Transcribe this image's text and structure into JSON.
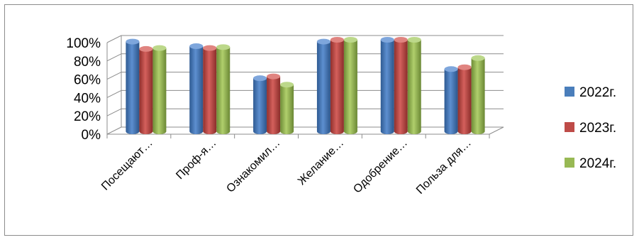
{
  "chart_data": {
    "type": "bar",
    "categories": [
      "Посещают…",
      "Проф-я…",
      "Ознакомил…",
      "Желание…",
      "Одобрение…",
      "Польза для…"
    ],
    "series": [
      {
        "name": "2022г.",
        "color": "#4a7ebb",
        "values": [
          98,
          93,
          58,
          98,
          100,
          68
        ]
      },
      {
        "name": "2023г.",
        "color": "#be4b48",
        "values": [
          90,
          91,
          60,
          100,
          100,
          70
        ]
      },
      {
        "name": "2024г.",
        "color": "#98b954",
        "values": [
          91,
          92,
          51,
          100,
          100,
          80
        ]
      }
    ],
    "y_ticks": [
      "0%",
      "20%",
      "40%",
      "60%",
      "80%",
      "100%"
    ],
    "ylim": [
      0,
      100
    ],
    "grid": true,
    "legend": "right",
    "style": "3d-cylinder"
  }
}
